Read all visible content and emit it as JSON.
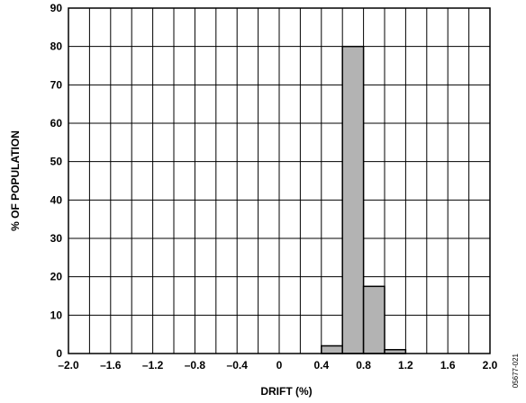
{
  "chart_data": {
    "type": "bar",
    "xlabel": "DRIFT (%)",
    "ylabel": "% OF POPULATION",
    "xlim": [
      -2.0,
      2.0
    ],
    "ylim": [
      0,
      90
    ],
    "x_ticks": [
      "–2.0",
      "–1.6",
      "–1.2",
      "–0.8",
      "–0.4",
      "0",
      "0.4",
      "0.8",
      "1.2",
      "1.6",
      "2.0"
    ],
    "y_ticks": [
      "0",
      "10",
      "20",
      "30",
      "40",
      "50",
      "60",
      "70",
      "80",
      "90"
    ],
    "bin_width": 0.2,
    "bins": [
      {
        "x": 0.4,
        "value": 2
      },
      {
        "x": 0.6,
        "value": 80
      },
      {
        "x": 0.8,
        "value": 17.5
      },
      {
        "x": 1.0,
        "value": 1
      }
    ],
    "grid": true,
    "bar_color": "#b3b3b3",
    "code": "05677-021"
  }
}
